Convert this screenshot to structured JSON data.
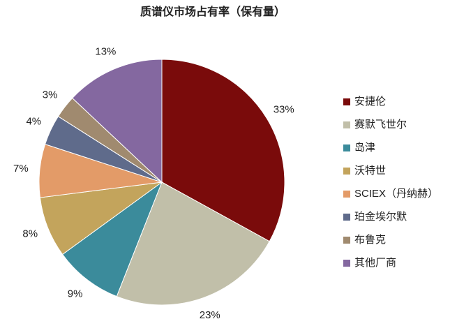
{
  "chart_data": {
    "type": "pie",
    "title": "质谱仪市场占有率（保有量）",
    "categories": [
      "安捷伦",
      "赛默飞世尔",
      "岛津",
      "沃特世",
      "SCIEX（丹纳赫）",
      "珀金埃尔默",
      "布鲁克",
      "其他厂商"
    ],
    "values": [
      33,
      23,
      9,
      8,
      7,
      4,
      3,
      13
    ],
    "value_labels": [
      "33%",
      "23%",
      "9%",
      "8%",
      "7%",
      "4%",
      "3%",
      "13%"
    ],
    "colors": [
      "#7a0b0b",
      "#c1bfa9",
      "#3b8b9b",
      "#c3a45c",
      "#e39b68",
      "#5f6b8b",
      "#a08a6f",
      "#8468a0"
    ],
    "legend": "right"
  }
}
